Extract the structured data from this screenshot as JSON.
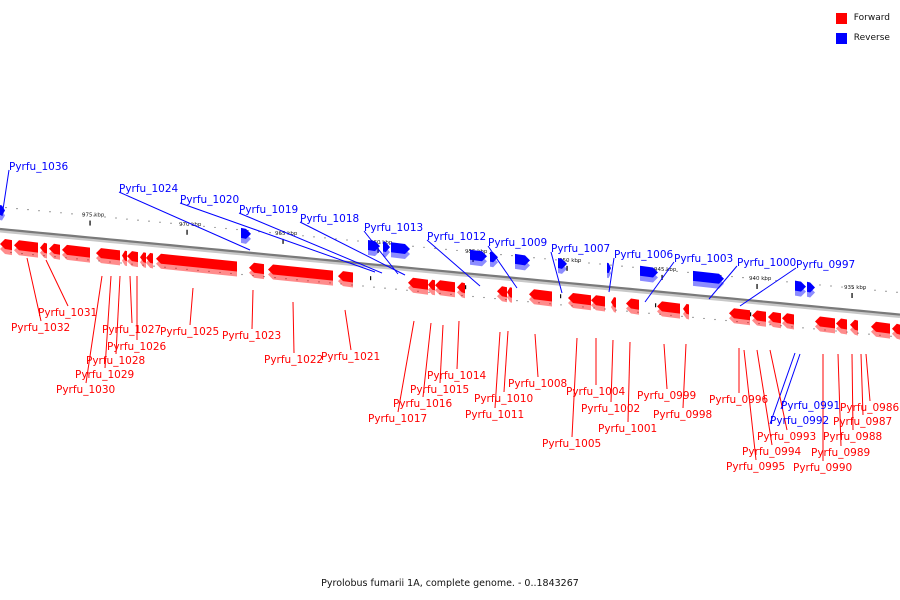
{
  "legend": [
    {
      "label": "Forward",
      "color": "#ff0000"
    },
    {
      "label": "Reverse",
      "color": "#0000ff"
    }
  ],
  "caption": "Pyrolobus fumarii 1A, complete genome. - 0..1843267",
  "scale_ticks": [
    {
      "label": "975 kbp"
    },
    {
      "label": "970 kbp"
    },
    {
      "label": "965 kbp"
    },
    {
      "label": "960 kbp"
    },
    {
      "label": "955 kbp"
    },
    {
      "label": "950 kbp"
    },
    {
      "label": "945 kbp"
    },
    {
      "label": "940 kbp"
    },
    {
      "label": "935 kbp"
    }
  ],
  "reverse_genes": [
    {
      "name": "Pyrfu_1036"
    },
    {
      "name": "Pyrfu_1024"
    },
    {
      "name": "Pyrfu_1020"
    },
    {
      "name": "Pyrfu_1019"
    },
    {
      "name": "Pyrfu_1018"
    },
    {
      "name": "Pyrfu_1013"
    },
    {
      "name": "Pyrfu_1012"
    },
    {
      "name": "Pyrfu_1009"
    },
    {
      "name": "Pyrfu_1007"
    },
    {
      "name": "Pyrfu_1006"
    },
    {
      "name": "Pyrfu_1003"
    },
    {
      "name": "Pyrfu_1000"
    },
    {
      "name": "Pyrfu_0997"
    },
    {
      "name": "Pyrfu_0991"
    },
    {
      "name": "Pyrfu_0992"
    }
  ],
  "forward_genes": [
    {
      "name": "Pyrfu_1031"
    },
    {
      "name": "Pyrfu_1032"
    },
    {
      "name": "Pyrfu_1027"
    },
    {
      "name": "Pyrfu_1026"
    },
    {
      "name": "Pyrfu_1028"
    },
    {
      "name": "Pyrfu_1029"
    },
    {
      "name": "Pyrfu_1030"
    },
    {
      "name": "Pyrfu_1025"
    },
    {
      "name": "Pyrfu_1023"
    },
    {
      "name": "Pyrfu_1022"
    },
    {
      "name": "Pyrfu_1021"
    },
    {
      "name": "Pyrfu_1014"
    },
    {
      "name": "Pyrfu_1015"
    },
    {
      "name": "Pyrfu_1016"
    },
    {
      "name": "Pyrfu_1017"
    },
    {
      "name": "Pyrfu_1008"
    },
    {
      "name": "Pyrfu_1010"
    },
    {
      "name": "Pyrfu_1011"
    },
    {
      "name": "Pyrfu_1005"
    },
    {
      "name": "Pyrfu_1004"
    },
    {
      "name": "Pyrfu_1002"
    },
    {
      "name": "Pyrfu_1001"
    },
    {
      "name": "Pyrfu_0999"
    },
    {
      "name": "Pyrfu_0998"
    },
    {
      "name": "Pyrfu_0996"
    },
    {
      "name": "Pyrfu_0993"
    },
    {
      "name": "Pyrfu_0994"
    },
    {
      "name": "Pyrfu_0995"
    },
    {
      "name": "Pyrfu_0986"
    },
    {
      "name": "Pyrfu_0987"
    },
    {
      "name": "Pyrfu_0988"
    },
    {
      "name": "Pyrfu_0989"
    },
    {
      "name": "Pyrfu_0990"
    }
  ]
}
